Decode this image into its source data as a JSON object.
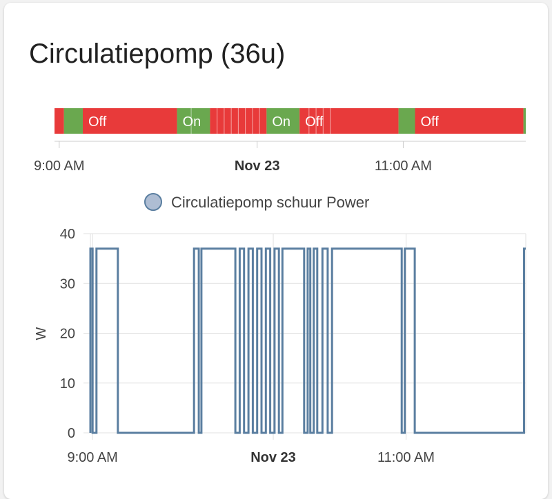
{
  "card": {
    "title": "Circulatiepomp (36u)"
  },
  "timeline": {
    "state_colors": {
      "On": "#6aa84f",
      "Off": "#e83a3a"
    },
    "segments": [
      {
        "state": "Off",
        "start": 0.0,
        "end": 0.02
      },
      {
        "state": "On",
        "start": 0.02,
        "end": 0.06
      },
      {
        "state": "Off",
        "start": 0.06,
        "end": 0.26,
        "label": "Off"
      },
      {
        "state": "On",
        "start": 0.26,
        "end": 0.33,
        "label": "On"
      },
      {
        "state": "Off",
        "start": 0.33,
        "end": 0.45
      },
      {
        "state": "On",
        "start": 0.45,
        "end": 0.52,
        "label": "On"
      },
      {
        "state": "Off",
        "start": 0.52,
        "end": 0.73,
        "label": "Off"
      },
      {
        "state": "On",
        "start": 0.73,
        "end": 0.765
      },
      {
        "state": "Off",
        "start": 0.765,
        "end": 0.995,
        "label": "Off"
      },
      {
        "state": "On",
        "start": 0.995,
        "end": 1.0
      }
    ],
    "ticks": [
      {
        "label": "9:00 AM",
        "pos": 0.01,
        "bold": false
      },
      {
        "label": "Nov 23",
        "pos": 0.43,
        "bold": true
      },
      {
        "label": "11:00 AM",
        "pos": 0.74,
        "bold": false
      }
    ]
  },
  "chart_data": {
    "type": "line",
    "title": "",
    "xlabel": "",
    "ylabel": "W",
    "ylim": [
      0,
      40
    ],
    "yticks": [
      0,
      10,
      20,
      30,
      40
    ],
    "xticks": [
      {
        "label": "9:00 AM",
        "pos": 0.005,
        "bold": false
      },
      {
        "label": "Nov 23",
        "pos": 0.42,
        "bold": true
      },
      {
        "label": "11:00 AM",
        "pos": 0.725,
        "bold": false
      }
    ],
    "grid": true,
    "legend": "top",
    "series": [
      {
        "name": "Circulatiepomp schuur Power",
        "color": "#5a7ea0",
        "marker_color": "#aebdd3",
        "x": [
          0.0,
          0.0,
          0.005,
          0.005,
          0.014,
          0.014,
          0.018,
          0.018,
          0.063,
          0.063,
          0.238,
          0.238,
          0.249,
          0.249,
          0.255,
          0.255,
          0.323,
          0.323,
          0.333,
          0.333,
          0.343,
          0.343,
          0.353,
          0.353,
          0.363,
          0.363,
          0.373,
          0.373,
          0.383,
          0.383,
          0.393,
          0.393,
          0.403,
          0.403,
          0.413,
          0.413,
          0.423,
          0.423,
          0.433,
          0.433,
          0.441,
          0.441,
          0.478,
          0.478,
          0.491,
          0.491,
          0.499,
          0.499,
          0.505,
          0.505,
          0.513,
          0.513,
          0.521,
          0.521,
          0.533,
          0.533,
          0.545,
          0.545,
          0.555,
          0.555,
          0.715,
          0.715,
          0.722,
          0.722,
          0.725,
          0.725,
          0.745,
          0.745,
          0.996,
          0.996,
          1.0
        ],
        "values": [
          0,
          37,
          37,
          0,
          0,
          37,
          37,
          37,
          37,
          0,
          0,
          37,
          37,
          0,
          0,
          37,
          37,
          37,
          37,
          0,
          0,
          37,
          37,
          0,
          0,
          37,
          37,
          0,
          0,
          37,
          37,
          0,
          0,
          37,
          37,
          0,
          0,
          37,
          37,
          0,
          0,
          37,
          37,
          37,
          37,
          0,
          0,
          37,
          37,
          0,
          0,
          37,
          37,
          0,
          0,
          37,
          37,
          0,
          0,
          37,
          37,
          0,
          0,
          37,
          37,
          37,
          37,
          0,
          0,
          37,
          37
        ]
      }
    ]
  }
}
